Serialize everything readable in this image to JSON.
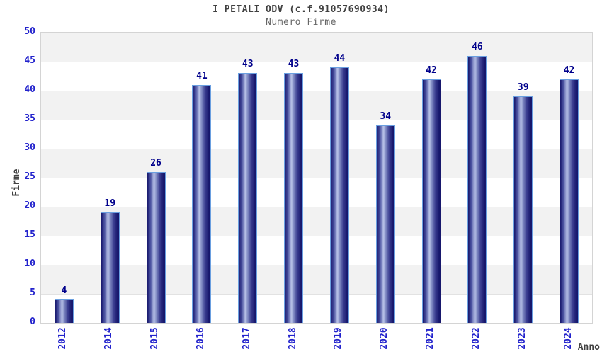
{
  "chart_data": {
    "type": "bar",
    "title": "I PETALI ODV (c.f.91057690934)",
    "subtitle": "Numero Firme",
    "xlabel": "Anno",
    "ylabel": "Firme",
    "categories": [
      "2012",
      "2014",
      "2015",
      "2016",
      "2017",
      "2018",
      "2019",
      "2020",
      "2021",
      "2022",
      "2023",
      "2024"
    ],
    "values": [
      4,
      19,
      26,
      41,
      43,
      43,
      44,
      34,
      42,
      46,
      39,
      42
    ],
    "ylim": [
      0,
      50
    ],
    "y_ticks": [
      0,
      5,
      10,
      15,
      20,
      25,
      30,
      35,
      40,
      45,
      50
    ],
    "grid": "horizontal-bands-every-5",
    "legend": "none",
    "bar_labels_shown": true,
    "x_tick_rotation_deg": 90
  },
  "colors": {
    "axis_text": "#2222cc",
    "value_label": "#00008b",
    "title_color": "#404040",
    "subtitle_color": "#666666",
    "band_gray": "#f2f2f2",
    "band_white": "#ffffff",
    "plot_border": "#d4d4d4",
    "bar_dark": "#17176c",
    "bar_mid": "#4a51a0",
    "bar_light": "#b9c3e8",
    "bar_border": "#6a9fe0",
    "background": "#ffffff"
  }
}
